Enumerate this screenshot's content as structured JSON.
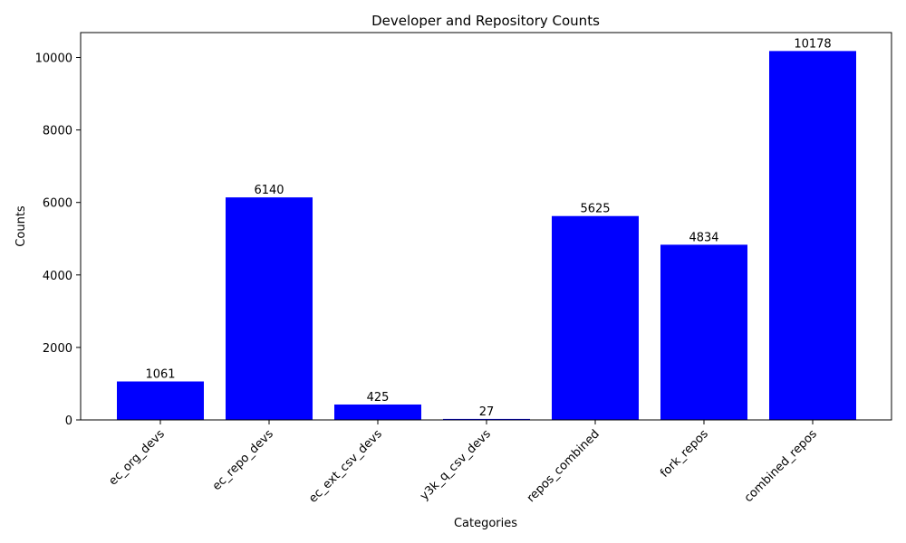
{
  "chart_data": {
    "type": "bar",
    "title": "Developer and Repository Counts",
    "xlabel": "Categories",
    "ylabel": "Counts",
    "categories": [
      "ec_org_devs",
      "ec_repo_devs",
      "ec_ext_csv_devs",
      "y3k_q_csv_devs",
      "repos_combined",
      "fork_repos",
      "combined_repos"
    ],
    "values": [
      1061,
      6140,
      425,
      27,
      5625,
      4834,
      10178
    ],
    "ylim": [
      0,
      10687
    ],
    "yticks": [
      0,
      2000,
      4000,
      6000,
      8000,
      10000
    ],
    "bar_color": "#0000ff",
    "grid": false,
    "legend": "none"
  }
}
